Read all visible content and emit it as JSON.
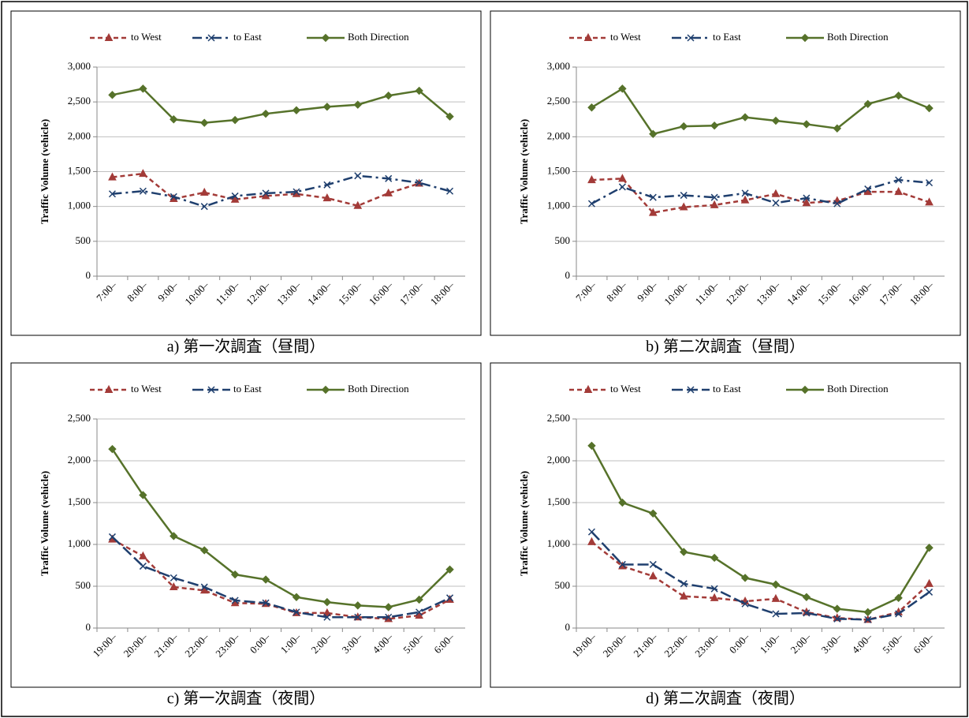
{
  "chart_data": [
    {
      "type": "line",
      "caption": "a) 第一次調査（昼間）",
      "ylabel": "Traffic Volume (vehicle)",
      "categories": [
        "7:00–",
        "8:00–",
        "9:00–",
        "10:00–",
        "11:00–",
        "12:00–",
        "13:00–",
        "14:00–",
        "15:00–",
        "16:00–",
        "17:00–",
        "18:00–"
      ],
      "series": [
        {
          "name": "to West",
          "color": "#a33b38",
          "marker": "triangle",
          "dash": "6,4",
          "values": [
            1420,
            1470,
            1110,
            1200,
            1100,
            1150,
            1180,
            1120,
            1010,
            1190,
            1330,
            null
          ]
        },
        {
          "name": "to East",
          "color": "#1f3f6e",
          "marker": "x",
          "dash": "12,5,3,5",
          "values": [
            1180,
            1220,
            1140,
            1000,
            1150,
            1190,
            1210,
            1310,
            1440,
            1400,
            1340,
            1220
          ]
        },
        {
          "name": "Both Direction",
          "color": "#56722a",
          "marker": "diamond",
          "dash": "none",
          "values": [
            2600,
            2690,
            2250,
            2200,
            2240,
            2330,
            2380,
            2430,
            2460,
            2590,
            2660,
            2290
          ]
        }
      ],
      "ylim": [
        0,
        3000
      ],
      "yticks": [
        0,
        500,
        {
          "value": 1000,
          "label": "1,000"
        },
        {
          "value": 1500,
          "label": "1,500"
        },
        {
          "value": 2000,
          "label": "2,000"
        },
        {
          "value": 2500,
          "label": "2,500"
        },
        {
          "value": 3000,
          "label": "3,000"
        }
      ],
      "grid": true
    },
    {
      "type": "line",
      "caption": "b) 第二次調査（昼間）",
      "ylabel": "Traffic Volume (vehicle)",
      "categories": [
        "7:00–",
        "8:00–",
        "9:00–",
        "10:00–",
        "11:00–",
        "12:00–",
        "13:00–",
        "14:00–",
        "15:00–",
        "16:00–",
        "17:00–",
        "18:00–"
      ],
      "series": [
        {
          "name": "to West",
          "color": "#a33b38",
          "marker": "triangle",
          "dash": "6,4",
          "values": [
            1380,
            1400,
            910,
            990,
            1020,
            1090,
            1180,
            1050,
            1080,
            1210,
            1210,
            1060
          ]
        },
        {
          "name": "to East",
          "color": "#1f3f6e",
          "marker": "x",
          "dash": "12,5,3,5",
          "values": [
            1040,
            1280,
            1130,
            1160,
            1130,
            1190,
            1050,
            1120,
            1040,
            1250,
            1380,
            1340
          ]
        },
        {
          "name": "Both Direction",
          "color": "#56722a",
          "marker": "diamond",
          "dash": "none",
          "values": [
            2420,
            2690,
            2040,
            2150,
            2160,
            2280,
            2230,
            2180,
            2120,
            2470,
            2590,
            2410
          ]
        }
      ],
      "ylim": [
        0,
        3000
      ],
      "yticks": [
        0,
        500,
        {
          "value": 1000,
          "label": "1,000"
        },
        {
          "value": 1500,
          "label": "1,500"
        },
        {
          "value": 2000,
          "label": "2,000"
        },
        {
          "value": 2500,
          "label": "2,500"
        },
        {
          "value": 3000,
          "label": "3,000"
        }
      ],
      "grid": true
    },
    {
      "type": "line",
      "caption": "c) 第一次調査（夜間）",
      "ylabel": "Traffic Volume (vehicle)",
      "categories": [
        "19:00–",
        "20:00–",
        "21:00–",
        "22:00–",
        "23:00–",
        "0:00–",
        "1:00–",
        "2:00–",
        "3:00–",
        "4:00–",
        "5:00–",
        "6:00–"
      ],
      "series": [
        {
          "name": "to West",
          "color": "#a33b38",
          "marker": "triangle",
          "dash": "6,4",
          "values": [
            1060,
            860,
            490,
            450,
            300,
            290,
            180,
            180,
            130,
            110,
            150,
            340
          ]
        },
        {
          "name": "to East",
          "color": "#1f3f6e",
          "marker": "x",
          "dash": "14,5",
          "values": [
            1090,
            740,
            600,
            490,
            330,
            300,
            190,
            130,
            130,
            130,
            190,
            360
          ]
        },
        {
          "name": "Both Direction",
          "color": "#56722a",
          "marker": "diamond",
          "dash": "none",
          "values": [
            2140,
            1590,
            1100,
            930,
            640,
            580,
            370,
            310,
            270,
            250,
            340,
            700
          ]
        }
      ],
      "ylim": [
        0,
        2500
      ],
      "yticks": [
        0,
        500,
        {
          "value": 1000,
          "label": "1,000"
        },
        {
          "value": 1500,
          "label": "1,500"
        },
        {
          "value": 2000,
          "label": "2,000"
        },
        {
          "value": 2500,
          "label": "2,500"
        }
      ],
      "grid": true
    },
    {
      "type": "line",
      "caption": "d) 第二次調査（夜間）",
      "ylabel": "Traffic Volume (vehicle)",
      "categories": [
        "19:00–",
        "20:00–",
        "21:00–",
        "22:00–",
        "23:00–",
        "0:00–",
        "1:00–",
        "2:00–",
        "3:00–",
        "4:00–",
        "5:00–",
        "6:00–"
      ],
      "series": [
        {
          "name": "to West",
          "color": "#a33b38",
          "marker": "triangle",
          "dash": "6,4",
          "values": [
            1030,
            740,
            620,
            380,
            360,
            320,
            350,
            190,
            120,
            100,
            190,
            530
          ]
        },
        {
          "name": "to East",
          "color": "#1f3f6e",
          "marker": "x",
          "dash": "14,5",
          "values": [
            1150,
            760,
            760,
            530,
            470,
            290,
            170,
            180,
            110,
            100,
            170,
            430
          ]
        },
        {
          "name": "Both Direction",
          "color": "#56722a",
          "marker": "diamond",
          "dash": "none",
          "values": [
            2180,
            1500,
            1370,
            910,
            840,
            600,
            520,
            370,
            230,
            190,
            360,
            960
          ]
        }
      ],
      "ylim": [
        0,
        2500
      ],
      "yticks": [
        0,
        500,
        {
          "value": 1000,
          "label": "1,000"
        },
        {
          "value": 1500,
          "label": "1,500"
        },
        {
          "value": 2000,
          "label": "2,000"
        },
        {
          "value": 2500,
          "label": "2,500"
        }
      ],
      "grid": true
    }
  ]
}
